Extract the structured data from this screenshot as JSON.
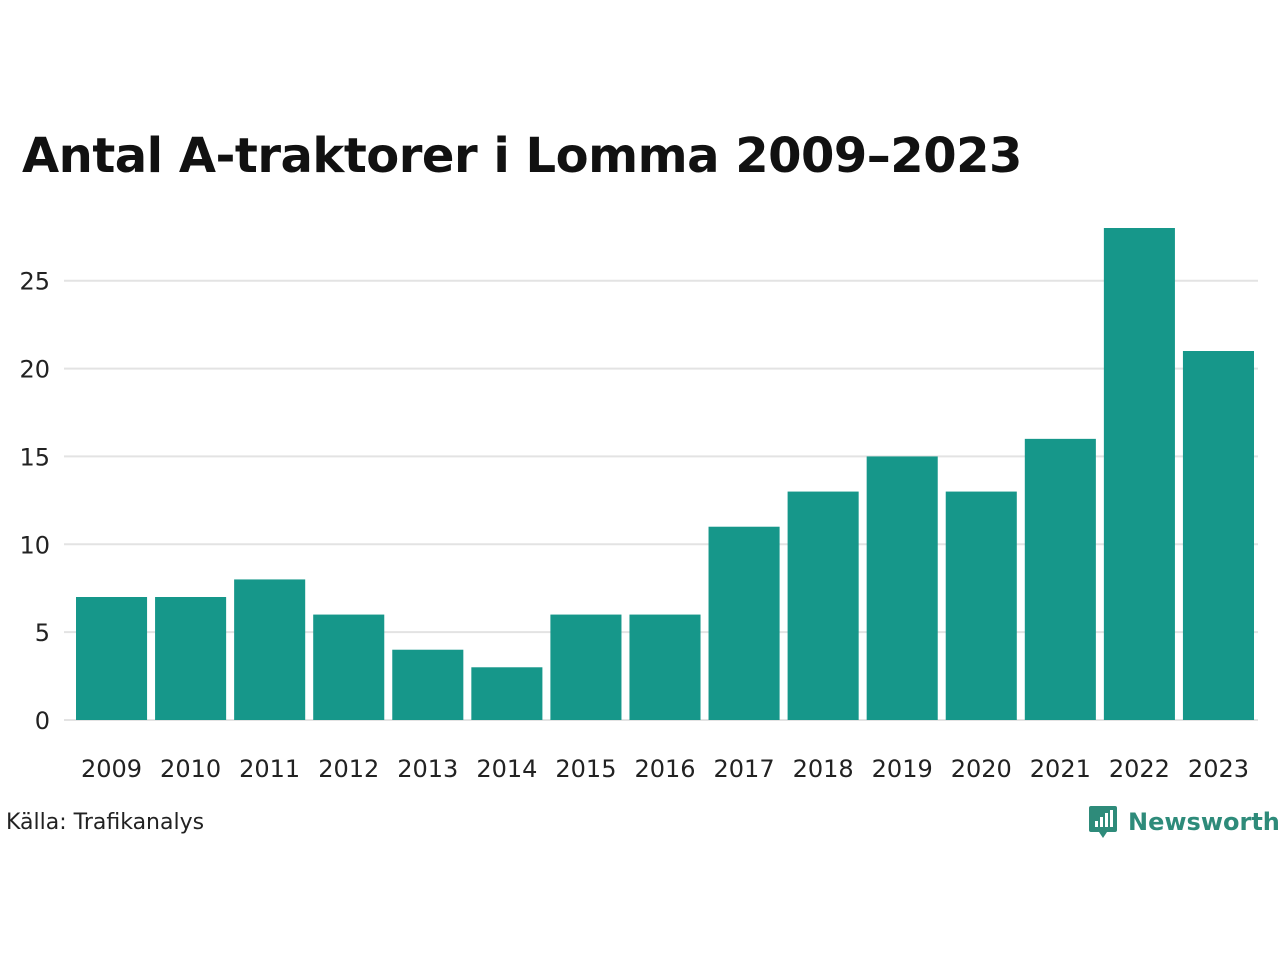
{
  "chart_data": {
    "type": "bar",
    "title": "Antal A-traktorer i Lomma 2009–2023",
    "categories": [
      "2009",
      "2010",
      "2011",
      "2012",
      "2013",
      "2014",
      "2015",
      "2016",
      "2017",
      "2018",
      "2019",
      "2020",
      "2021",
      "2022",
      "2023"
    ],
    "values": [
      7,
      7,
      8,
      6,
      4,
      3,
      6,
      6,
      11,
      13,
      15,
      13,
      16,
      28,
      21
    ],
    "yticks": [
      0,
      5,
      10,
      15,
      20,
      25
    ],
    "ylim": [
      0,
      28
    ],
    "xlabel": "",
    "ylabel": "",
    "grid": true,
    "bar_color": "#16978a"
  },
  "source": "Källa: Trafikanalys",
  "brand": {
    "name": "Newsworthy",
    "icon": "newsworthy-logo-icon",
    "color": "#2e8b7a"
  }
}
